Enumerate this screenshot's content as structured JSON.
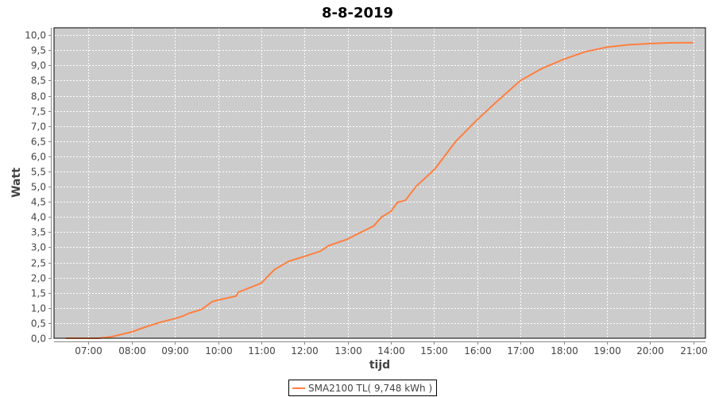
{
  "chart_data": {
    "type": "line",
    "title": "8-8-2019",
    "xlabel": "tijd",
    "ylabel": "Watt",
    "xlim": [
      "06:12",
      "21:17"
    ],
    "ylim": [
      0,
      10.24
    ],
    "x_ticks": [
      "07:00",
      "08:00",
      "09:00",
      "10:00",
      "11:00",
      "12:00",
      "13:00",
      "14:00",
      "15:00",
      "16:00",
      "17:00",
      "18:00",
      "19:00",
      "20:00",
      "21:00"
    ],
    "y_ticks": [
      "0,0",
      "0,5",
      "1,0",
      "1,5",
      "2,0",
      "2,5",
      "3,0",
      "3,5",
      "4,0",
      "4,5",
      "5,0",
      "5,5",
      "6,0",
      "6,5",
      "7,0",
      "7,5",
      "8,0",
      "8,5",
      "9,0",
      "9,5",
      "10,0"
    ],
    "grid": true,
    "legend_position": "bottom",
    "colors": {
      "series": "#ff7f3f",
      "plot_background": "#cccccc",
      "grid": "#ffffff"
    },
    "series": [
      {
        "name": "SMA2100 TL( 9,748 kWh )",
        "x": [
          "06:28",
          "07:14",
          "07:32",
          "08:00",
          "08:20",
          "08:40",
          "09:00",
          "09:11",
          "09:19",
          "09:37",
          "09:52",
          "10:00",
          "10:25",
          "10:28",
          "11:00",
          "11:18",
          "11:38",
          "12:00",
          "12:22",
          "12:34",
          "12:59",
          "13:17",
          "13:36",
          "13:47",
          "14:00",
          "14:09",
          "14:20",
          "14:35",
          "15:01",
          "15:30",
          "15:59",
          "16:25",
          "17:00",
          "17:30",
          "18:00",
          "18:30",
          "19:00",
          "19:30",
          "20:00",
          "20:30",
          "21:00"
        ],
        "y": [
          0,
          0,
          0.05,
          0.21,
          0.38,
          0.53,
          0.65,
          0.73,
          0.82,
          0.95,
          1.21,
          1.26,
          1.39,
          1.52,
          1.82,
          2.26,
          2.54,
          2.7,
          2.87,
          3.06,
          3.26,
          3.48,
          3.7,
          4.0,
          4.18,
          4.48,
          4.55,
          5.01,
          5.58,
          6.49,
          7.19,
          7.76,
          8.5,
          8.9,
          9.2,
          9.45,
          9.6,
          9.68,
          9.72,
          9.745,
          9.748
        ]
      }
    ]
  }
}
